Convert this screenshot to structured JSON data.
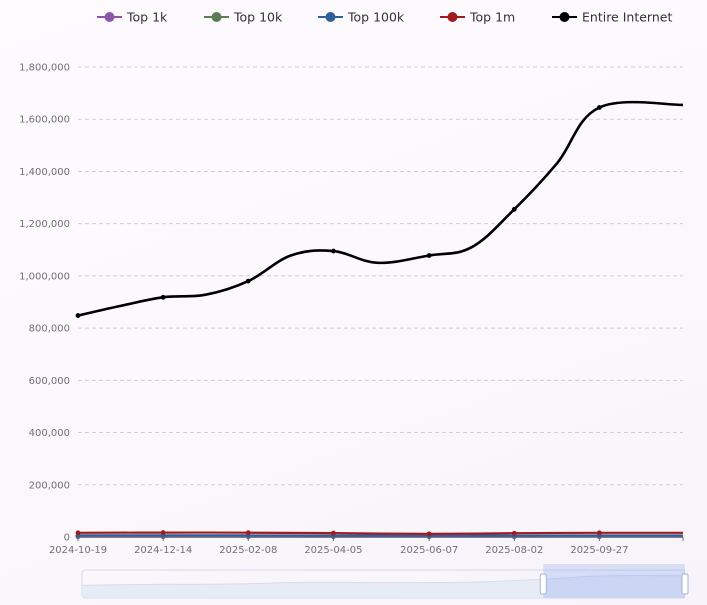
{
  "chart_data": {
    "type": "line",
    "title": "",
    "xlabel": "",
    "ylabel": "",
    "ylim": [
      0,
      1800000
    ],
    "yticks": [
      0,
      200000,
      400000,
      600000,
      800000,
      1000000,
      1200000,
      1400000,
      1600000,
      1800000
    ],
    "ytick_labels": [
      "0",
      "200,000",
      "400,000",
      "600,000",
      "800,000",
      "1,000,000",
      "1,200,000",
      "1,400,000",
      "1,600,000",
      "1,800,000"
    ],
    "xlim": [
      "2024-10-19",
      "2025-11-21"
    ],
    "xticks": [
      "2024-10-19",
      "2024-12-14",
      "2025-02-08",
      "2025-04-05",
      "2025-06-07",
      "2025-08-02",
      "2025-09-27"
    ],
    "grid": true,
    "legend": "top",
    "series": [
      {
        "name": "Top 1k",
        "color": "#8e56a8",
        "x": [
          "2024-10-19",
          "2024-12-14",
          "2025-02-08",
          "2025-04-05",
          "2025-06-07",
          "2025-08-02",
          "2025-09-27",
          "2025-11-21"
        ],
        "values": [
          600,
          600,
          600,
          600,
          600,
          600,
          600,
          600
        ],
        "points": [
          true,
          true,
          true,
          true,
          true,
          true,
          true,
          false
        ]
      },
      {
        "name": "Top 10k",
        "color": "#5d7d55",
        "x": [
          "2024-10-19",
          "2024-12-14",
          "2025-02-08",
          "2025-04-05",
          "2025-06-07",
          "2025-08-02",
          "2025-09-27",
          "2025-11-21"
        ],
        "values": [
          3000,
          3000,
          3000,
          3000,
          2900,
          3000,
          3000,
          3000
        ],
        "points": [
          true,
          true,
          true,
          true,
          true,
          true,
          true,
          false
        ]
      },
      {
        "name": "Top 100k",
        "color": "#2f5f9a",
        "x": [
          "2024-10-19",
          "2024-12-14",
          "2025-02-08",
          "2025-04-05",
          "2025-06-07",
          "2025-08-02",
          "2025-09-27",
          "2025-11-21"
        ],
        "values": [
          6000,
          6000,
          6000,
          5500,
          5000,
          5500,
          5800,
          5800
        ],
        "points": [
          true,
          true,
          true,
          true,
          true,
          true,
          true,
          false
        ]
      },
      {
        "name": "Top 1m",
        "color": "#a01c21",
        "x": [
          "2024-10-19",
          "2024-12-14",
          "2025-02-08",
          "2025-04-05",
          "2025-06-07",
          "2025-08-02",
          "2025-09-27",
          "2025-11-21"
        ],
        "values": [
          16000,
          17000,
          16500,
          15000,
          12000,
          14500,
          16000,
          16000
        ],
        "points": [
          true,
          true,
          true,
          true,
          true,
          true,
          true,
          false
        ]
      },
      {
        "name": "Entire Internet",
        "color": "#000000",
        "x": [
          "2024-10-19",
          "2024-11-16",
          "2024-12-14",
          "2025-01-11",
          "2025-02-08",
          "2025-03-08",
          "2025-04-05",
          "2025-05-04",
          "2025-06-07",
          "2025-07-05",
          "2025-08-02",
          "2025-08-30",
          "2025-09-27",
          "2025-11-21"
        ],
        "values": [
          848000,
          885000,
          918000,
          928000,
          980000,
          1078000,
          1095000,
          1050000,
          1078000,
          1110000,
          1255000,
          1430000,
          1645000,
          1655000
        ],
        "points": [
          true,
          false,
          true,
          false,
          true,
          false,
          true,
          false,
          true,
          false,
          true,
          false,
          true,
          false
        ]
      }
    ],
    "overview": {
      "window": [
        0.765,
        1.0
      ]
    }
  }
}
